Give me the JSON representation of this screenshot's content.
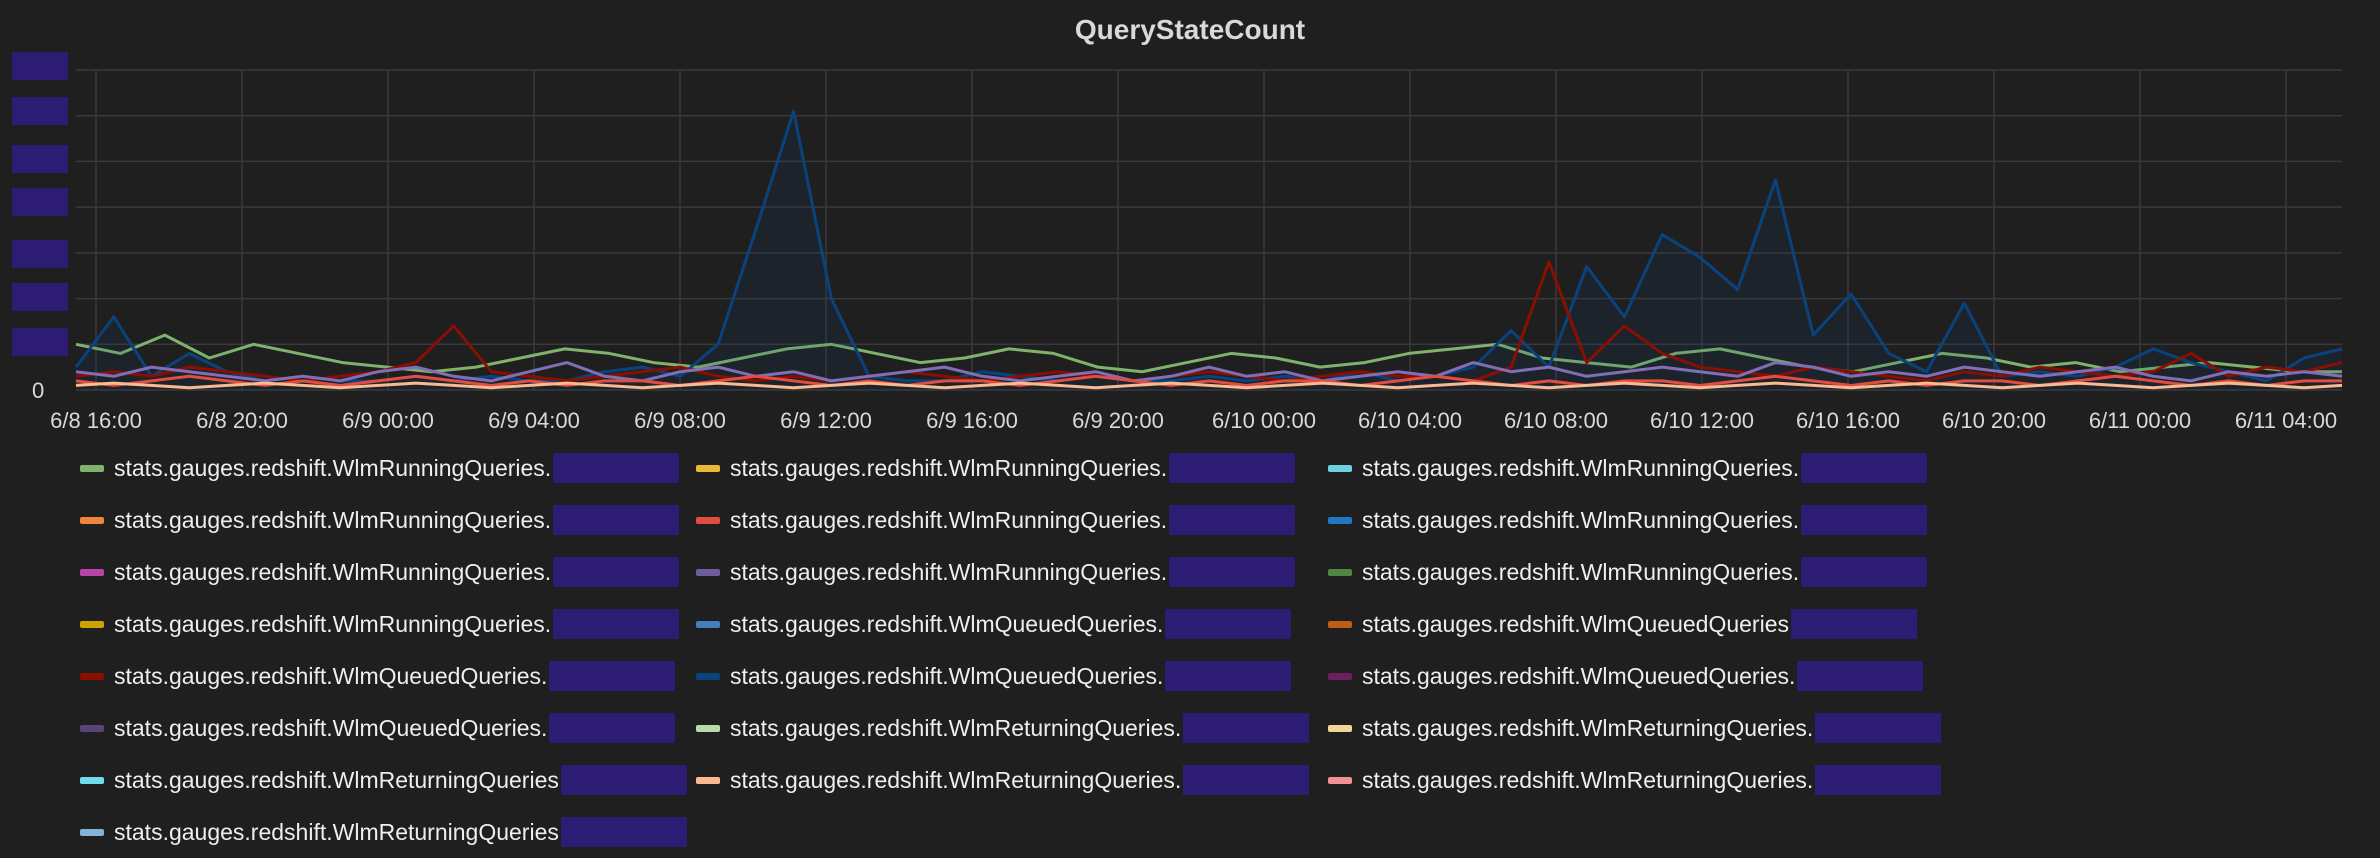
{
  "panel": {
    "title": "QueryStateCount",
    "colors": {
      "background": "#1f1f20",
      "grid": "#3a3a3c",
      "text": "#d8d9da",
      "redaction": "#2c1c74"
    }
  },
  "chart_data": {
    "type": "line",
    "title": "QueryStateCount",
    "xlabel": "",
    "ylabel": "",
    "x_ticks": [
      "6/8 16:00",
      "6/8 20:00",
      "6/9 00:00",
      "6/9 04:00",
      "6/9 08:00",
      "6/9 12:00",
      "6/9 16:00",
      "6/9 20:00",
      "6/10 00:00",
      "6/10 04:00",
      "6/10 08:00",
      "6/10 12:00",
      "6/10 16:00",
      "6/10 20:00",
      "6/11 00:00",
      "6/11 04:00"
    ],
    "x_range_hours": [
      0,
      61
    ],
    "y_ticks": [
      "0"
    ],
    "y_max": 7,
    "grid": true,
    "legend_placement": "bottom",
    "series": [
      {
        "color": "#7eb26d",
        "values": [
          1,
          0.8,
          1.2,
          0.7,
          1.0,
          0.8,
          0.6,
          0.5,
          0.4,
          0.5,
          0.7,
          0.9,
          0.8,
          0.6,
          0.5,
          0.7,
          0.9,
          1.0,
          0.8,
          0.6,
          0.7,
          0.9,
          0.8,
          0.5,
          0.4,
          0.6,
          0.8,
          0.7,
          0.5,
          0.6,
          0.8,
          0.9,
          1.0,
          0.7,
          0.6,
          0.5,
          0.8,
          0.9,
          0.7,
          0.5,
          0.4,
          0.6,
          0.8,
          0.7,
          0.5,
          0.6,
          0.4,
          0.5,
          0.6,
          0.5,
          0.4,
          0.4
        ]
      },
      {
        "color": "#0a437c",
        "values": [
          0.5,
          1.6,
          0.3,
          0.8,
          0.4,
          0.2,
          0.3,
          0.2,
          0.2,
          0.3,
          0.2,
          0.3,
          0.2,
          0.2,
          0.4,
          0.5,
          0.3,
          1.0,
          3.5,
          6.1,
          2.0,
          0.3,
          0.2,
          0.2,
          0.4,
          0.3,
          0.2,
          0.3,
          0.2,
          0.2,
          0.3,
          0.2,
          0.3,
          0.2,
          0.4,
          0.2,
          0.3,
          0.5,
          1.3,
          0.5,
          2.7,
          1.6,
          3.4,
          2.9,
          2.2,
          4.6,
          1.2,
          2.1,
          0.8,
          0.4,
          1.9,
          0.3,
          0.4,
          0.3,
          0.5,
          0.9,
          0.6,
          0.4,
          0.2,
          0.7,
          0.9
        ]
      },
      {
        "color": "#890f02",
        "values": [
          0.3,
          0.4,
          0.3,
          0.5,
          0.4,
          0.3,
          0.2,
          0.3,
          0.4,
          0.6,
          1.4,
          0.4,
          0.3,
          0.2,
          0.3,
          0.4,
          0.5,
          0.3,
          0.2,
          0.3,
          0.2,
          0.3,
          0.4,
          0.3,
          0.2,
          0.3,
          0.4,
          0.3,
          0.2,
          0.3,
          0.4,
          0.3,
          0.2,
          0.3,
          0.4,
          0.3,
          0.3,
          0.2,
          0.5,
          2.8,
          0.6,
          1.4,
          0.8,
          0.5,
          0.4,
          0.3,
          0.5,
          0.4,
          0.3,
          0.2,
          0.4,
          0.3,
          0.5,
          0.4,
          0.3,
          0.4,
          0.8,
          0.3,
          0.5,
          0.4,
          0.6
        ]
      },
      {
        "color": "#806eb7",
        "values": [
          0.4,
          0.3,
          0.5,
          0.4,
          0.3,
          0.2,
          0.3,
          0.2,
          0.4,
          0.5,
          0.3,
          0.2,
          0.4,
          0.6,
          0.3,
          0.2,
          0.4,
          0.5,
          0.3,
          0.4,
          0.2,
          0.3,
          0.4,
          0.5,
          0.3,
          0.2,
          0.3,
          0.4,
          0.2,
          0.3,
          0.5,
          0.3,
          0.4,
          0.2,
          0.3,
          0.4,
          0.3,
          0.6,
          0.4,
          0.5,
          0.3,
          0.4,
          0.5,
          0.4,
          0.3,
          0.6,
          0.5,
          0.3,
          0.4,
          0.3,
          0.5,
          0.4,
          0.3,
          0.4,
          0.5,
          0.3,
          0.2,
          0.4,
          0.3,
          0.4,
          0.3
        ]
      },
      {
        "color": "#e24d42",
        "values": [
          0.2,
          0.1,
          0.2,
          0.3,
          0.2,
          0.1,
          0.2,
          0.1,
          0.2,
          0.3,
          0.2,
          0.1,
          0.2,
          0.1,
          0.2,
          0.2,
          0.1,
          0.2,
          0.3,
          0.2,
          0.1,
          0.2,
          0.1,
          0.2,
          0.2,
          0.1,
          0.2,
          0.3,
          0.2,
          0.1,
          0.2,
          0.1,
          0.2,
          0.2,
          0.1,
          0.2,
          0.3,
          0.2,
          0.1,
          0.2,
          0.1,
          0.2,
          0.2,
          0.1,
          0.2,
          0.3,
          0.2,
          0.1,
          0.2,
          0.1,
          0.2,
          0.2,
          0.1,
          0.2,
          0.3,
          0.2,
          0.1,
          0.2,
          0.1,
          0.2,
          0.2
        ]
      },
      {
        "color": "#f9ba8f",
        "values": [
          0.1,
          0.15,
          0.1,
          0.05,
          0.1,
          0.15,
          0.1,
          0.05,
          0.1,
          0.15,
          0.1,
          0.05,
          0.1,
          0.15,
          0.1,
          0.05,
          0.1,
          0.15,
          0.1,
          0.05,
          0.1,
          0.15,
          0.1,
          0.05,
          0.1,
          0.15,
          0.1,
          0.05,
          0.1,
          0.15,
          0.1,
          0.05,
          0.1,
          0.15,
          0.1,
          0.05,
          0.1,
          0.15,
          0.1,
          0.05,
          0.1,
          0.15,
          0.1,
          0.05,
          0.1,
          0.15,
          0.1,
          0.05,
          0.1,
          0.15,
          0.1,
          0.05,
          0.1,
          0.15,
          0.1,
          0.05,
          0.1,
          0.15,
          0.1,
          0.05,
          0.1
        ]
      }
    ]
  },
  "legend": {
    "rows": [
      [
        {
          "color": "#7eb26d",
          "label": "stats.gauges.redshift.WlmRunningQueries.",
          "redact": true
        },
        {
          "color": "#eab839",
          "label": "stats.gauges.redshift.WlmRunningQueries.",
          "redact": true
        },
        {
          "color": "#6ed0e0",
          "label": "stats.gauges.redshift.WlmRunningQueries.",
          "redact": true
        }
      ],
      [
        {
          "color": "#ef843c",
          "label": "stats.gauges.redshift.WlmRunningQueries.",
          "redact": true
        },
        {
          "color": "#e24d42",
          "label": "stats.gauges.redshift.WlmRunningQueries.",
          "redact": true
        },
        {
          "color": "#1f78c1",
          "label": "stats.gauges.redshift.WlmRunningQueries.",
          "redact": true
        }
      ],
      [
        {
          "color": "#ba43a9",
          "label": "stats.gauges.redshift.WlmRunningQueries.",
          "redact": true
        },
        {
          "color": "#705da0",
          "label": "stats.gauges.redshift.WlmRunningQueries.",
          "redact": true
        },
        {
          "color": "#508642",
          "label": "stats.gauges.redshift.WlmRunningQueries.",
          "redact": true
        }
      ],
      [
        {
          "color": "#cca300",
          "label": "stats.gauges.redshift.WlmRunningQueries.",
          "redact": true
        },
        {
          "color": "#447ebc",
          "label": "stats.gauges.redshift.WlmQueuedQueries.",
          "redact": true
        },
        {
          "color": "#c15c17",
          "label": "stats.gauges.redshift.WlmQueuedQueries",
          "redact": true
        }
      ],
      [
        {
          "color": "#890f02",
          "label": "stats.gauges.redshift.WlmQueuedQueries.",
          "redact": true
        },
        {
          "color": "#0a437c",
          "label": "stats.gauges.redshift.WlmQueuedQueries.",
          "redact": true
        },
        {
          "color": "#6d1f62",
          "label": "stats.gauges.redshift.WlmQueuedQueries.",
          "redact": true
        }
      ],
      [
        {
          "color": "#584477",
          "label": "stats.gauges.redshift.WlmQueuedQueries.",
          "redact": true
        },
        {
          "color": "#b7dbab",
          "label": "stats.gauges.redshift.WlmReturningQueries.",
          "redact": true
        },
        {
          "color": "#f4d598",
          "label": "stats.gauges.redshift.WlmReturningQueries.",
          "redact": true
        }
      ],
      [
        {
          "color": "#70dbed",
          "label": "stats.gauges.redshift.WlmReturningQueries",
          "redact": true
        },
        {
          "color": "#f9ba8f",
          "label": "stats.gauges.redshift.WlmReturningQueries.",
          "redact": true
        },
        {
          "color": "#f29191",
          "label": "stats.gauges.redshift.WlmReturningQueries.",
          "redact": true
        }
      ],
      [
        {
          "color": "#82b5d8",
          "label": "stats.gauges.redshift.WlmReturningQueries",
          "redact": true
        }
      ]
    ]
  }
}
